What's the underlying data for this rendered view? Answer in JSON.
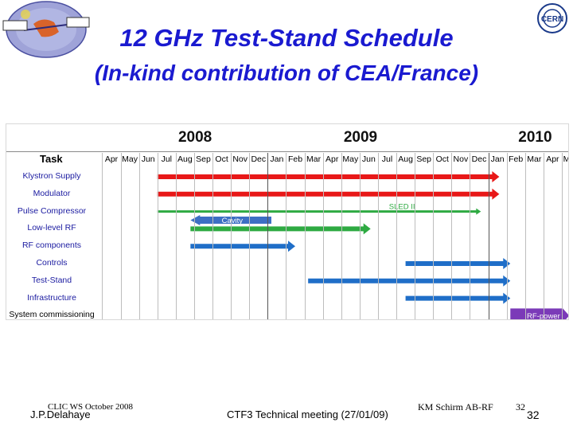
{
  "slide": {
    "title": "12 GHz Test-Stand Schedule",
    "subtitle": "(In-kind contribution of CEA/France)"
  },
  "chart": {
    "years": [
      {
        "label": "2008",
        "month_index": 4.5
      },
      {
        "label": "2009",
        "month_index": 13.5
      },
      {
        "label": "2010",
        "month_index": 23.0
      }
    ],
    "task_header": "Task",
    "months": [
      "Apr",
      "May",
      "Jun",
      "Jul",
      "Aug",
      "Sep",
      "Oct",
      "Nov",
      "Dec",
      "Jan",
      "Feb",
      "Mar",
      "Apr",
      "May",
      "Jun",
      "Jul",
      "Aug",
      "Sep",
      "Oct",
      "Nov",
      "Dec",
      "Jan",
      "Feb",
      "Mar",
      "Apr",
      "May"
    ],
    "tasks": [
      {
        "label": "Klystron Supply"
      },
      {
        "label": "Modulator"
      },
      {
        "label": "Pulse Compressor"
      },
      {
        "label": "Low-level RF"
      },
      {
        "label": "RF components"
      },
      {
        "label": "Controls"
      },
      {
        "label": "Test-Stand"
      },
      {
        "label": "Infrastructure"
      },
      {
        "label": "System commissioning"
      }
    ],
    "bars": [
      {
        "row": 0,
        "start": 3.0,
        "end": 21.6,
        "color": "#e81818",
        "label": ""
      },
      {
        "row": 1,
        "start": 3.0,
        "end": 21.6,
        "color": "#e81818",
        "label": ""
      },
      {
        "row": 2,
        "start": 3.0,
        "end": 20.6,
        "color": "#2eaa42",
        "label": "SLED II",
        "label_pos": 15.6,
        "label_color": "#2eaa42",
        "style": "line"
      },
      {
        "row": 2.5,
        "start": 4.8,
        "end": 9.2,
        "color": "#3d6fc4",
        "label": "Cavity",
        "label_pos": 6.5,
        "label_color": "#ffffff",
        "style": "back"
      },
      {
        "row": 3,
        "start": 4.8,
        "end": 14.6,
        "color": "#2eaa42",
        "label": ""
      },
      {
        "row": 4,
        "start": 4.8,
        "end": 10.5,
        "color": "#1f6ec8",
        "label": ""
      },
      {
        "row": 5,
        "start": 16.5,
        "end": 22.2,
        "color": "#1f6ec8",
        "label": ""
      },
      {
        "row": 6,
        "start": 11.2,
        "end": 22.2,
        "color": "#1f6ec8",
        "label": ""
      },
      {
        "row": 7,
        "start": 16.5,
        "end": 22.2,
        "color": "#1f6ec8",
        "label": ""
      },
      {
        "row": 8,
        "start": 22.2,
        "end": 25.4,
        "color": "#7b3ab8",
        "label": "RF-power",
        "label_pos": 23.1,
        "label_color": "#ffffff",
        "style": "solid"
      }
    ]
  },
  "footer": {
    "event": "CLIC WS October 2008",
    "presenter": "J.P.Delahaye",
    "meeting": "CTF3 Technical meeting (27/01/09)",
    "author": "KM Schirm AB-RF",
    "page_small": "32",
    "page": "32"
  }
}
